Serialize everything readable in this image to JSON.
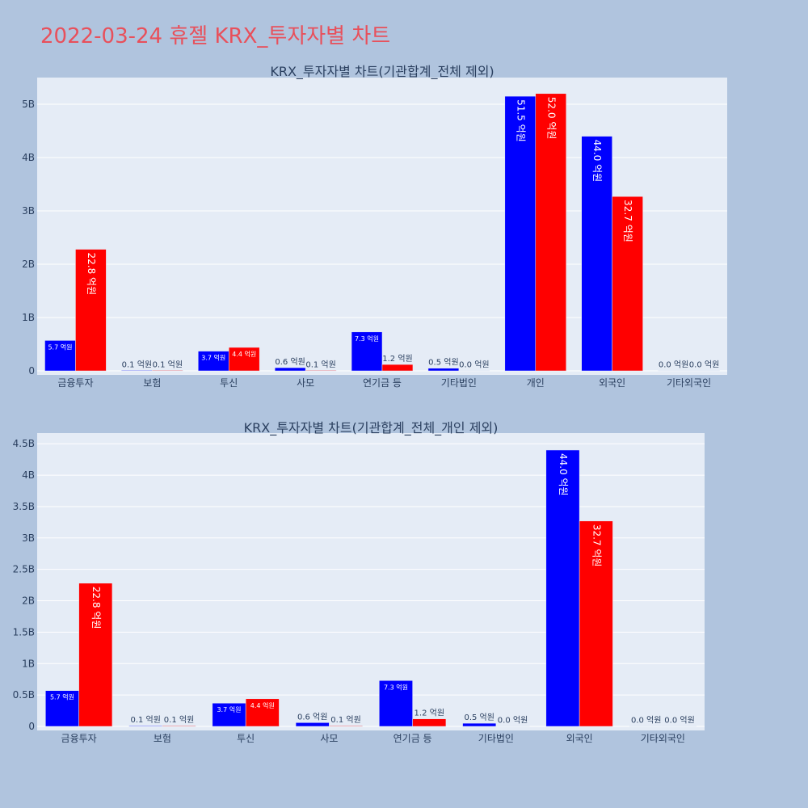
{
  "title": "2022-03-24 휴젤 KRX_투자자별 차트",
  "colors": {
    "background": "#b0c4de",
    "plot_bg": "#e5ecf6",
    "grid": "#ffffff",
    "series_1": "#0000ff",
    "series_2": "#ff0000",
    "title": "#e8505b"
  },
  "chart_data": [
    {
      "type": "bar",
      "title": "KRX_투자자별 차트(기관합계_전체 제외)",
      "categories": [
        "금융투자",
        "보험",
        "투신",
        "사모",
        "연기금 등",
        "기타법인",
        "개인",
        "외국인",
        "기타외국인"
      ],
      "series": [
        {
          "values": [
            0.57,
            0.01,
            0.37,
            0.06,
            0.73,
            0.05,
            5.15,
            4.4,
            0.0
          ],
          "labels": [
            "5.7 억원",
            "0.1 억원",
            "3.7 억원",
            "0.6 억원",
            "7.3 억원",
            "0.5 억원",
            "51.5 억원",
            "44.0 억원",
            "0.0 억원"
          ]
        },
        {
          "values": [
            2.28,
            0.01,
            0.44,
            0.01,
            0.12,
            0.0,
            5.2,
            3.27,
            0.0
          ],
          "labels": [
            "22.8 억원",
            "0.1 억원",
            "4.4 억원",
            "0.1 억원",
            "1.2 억원",
            "0.0 억원",
            "52.0 억원",
            "32.7 억원",
            "0.0 억원"
          ]
        }
      ],
      "yticks": [
        0,
        1,
        2,
        3,
        4,
        5
      ],
      "ytick_labels": [
        "0",
        "1B",
        "2B",
        "3B",
        "4B",
        "5B"
      ],
      "ylim": [
        0,
        5.5
      ],
      "grid": true
    },
    {
      "type": "bar",
      "title": "KRX_투자자별 차트(기관합계_전체_개인 제외)",
      "categories": [
        "금융투자",
        "보험",
        "투신",
        "사모",
        "연기금 등",
        "기타법인",
        "외국인",
        "기타외국인"
      ],
      "series": [
        {
          "values": [
            0.57,
            0.01,
            0.37,
            0.06,
            0.73,
            0.05,
            4.4,
            0.0
          ],
          "labels": [
            "5.7 억원",
            "0.1 억원",
            "3.7 억원",
            "0.6 억원",
            "7.3 억원",
            "0.5 억원",
            "44.0 억원",
            "0.0 억원"
          ]
        },
        {
          "values": [
            2.28,
            0.01,
            0.44,
            0.01,
            0.12,
            0.0,
            3.27,
            0.0
          ],
          "labels": [
            "22.8 억원",
            "0.1 억원",
            "4.4 억원",
            "0.1 억원",
            "1.2 억원",
            "0.0 억원",
            "32.7 억원",
            "0.0 억원"
          ]
        }
      ],
      "yticks": [
        0,
        0.5,
        1,
        1.5,
        2,
        2.5,
        3,
        3.5,
        4,
        4.5
      ],
      "ytick_labels": [
        "0",
        "0.5B",
        "1B",
        "1.5B",
        "2B",
        "2.5B",
        "3B",
        "3.5B",
        "4B",
        "4.5B"
      ],
      "ylim": [
        0,
        4.67
      ],
      "grid": true
    }
  ]
}
